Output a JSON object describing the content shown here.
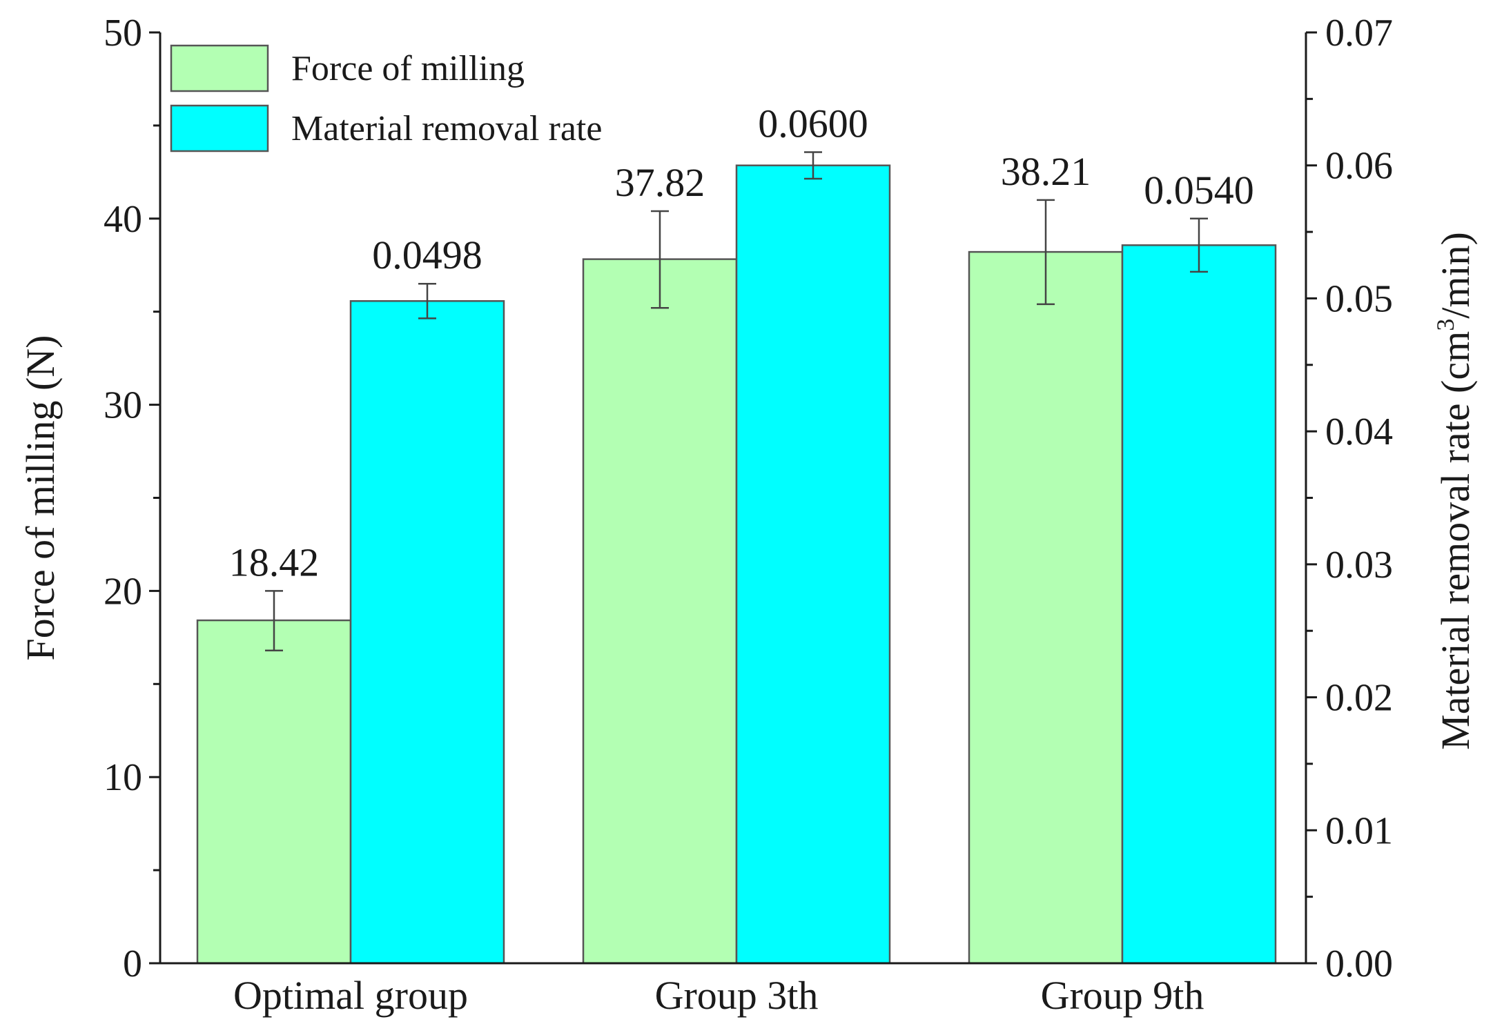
{
  "chart_data": {
    "type": "bar",
    "categories": [
      "Optimal group",
      "Group 3th",
      "Group 9th"
    ],
    "series": [
      {
        "name": "Force of milling",
        "axis": "left",
        "color": "#b3ffb3",
        "values": [
          18.42,
          37.82,
          38.21
        ],
        "value_labels": [
          "18.42",
          "37.82",
          "38.21"
        ],
        "error_low": [
          16.8,
          35.2,
          35.4
        ],
        "error_high": [
          20.0,
          40.4,
          41.0
        ]
      },
      {
        "name": "Material removal rate",
        "axis": "right",
        "color": "#00ffff",
        "values": [
          0.0498,
          0.06,
          0.054
        ],
        "value_labels": [
          "0.0498",
          "0.0600",
          "0.0540"
        ],
        "error_low": [
          0.0485,
          0.059,
          0.052
        ],
        "error_high": [
          0.0511,
          0.061,
          0.056
        ]
      }
    ],
    "y_left": {
      "label": "Force of milling (N)",
      "lim": [
        0,
        50
      ],
      "ticks": [
        "0",
        "10",
        "20",
        "30",
        "40",
        "50"
      ]
    },
    "y_right": {
      "label_main": "Material removal rate  (cm",
      "label_sup": "3",
      "label_tail": "/min)",
      "lim": [
        0,
        0.07
      ],
      "ticks": [
        "0.00",
        "0.01",
        "0.02",
        "0.03",
        "0.04",
        "0.05",
        "0.06",
        "0.07"
      ]
    },
    "legend_position": "top-left",
    "grid": false
  }
}
